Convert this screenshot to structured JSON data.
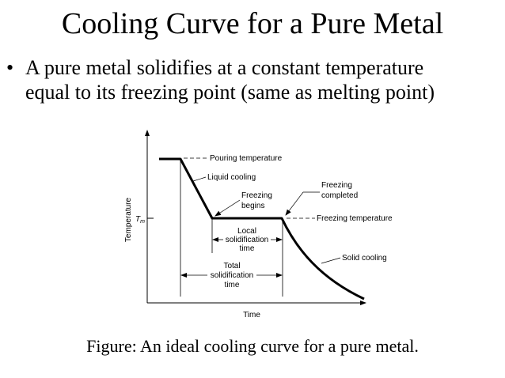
{
  "title": "Cooling Curve for a Pure Metal",
  "bullet": {
    "marker": "•",
    "line1": "A pure metal solidifies at a constant temperature",
    "line2": "equal to its freezing point (same as melting point)"
  },
  "diagram": {
    "y_axis_label": "Temperature",
    "x_axis_label": "Time",
    "tm_symbol": "T",
    "tm_subscript": "m",
    "labels": {
      "pouring_temperature": "Pouring temperature",
      "liquid_cooling": "Liquid cooling",
      "freezing_begins_1": "Freezing",
      "freezing_begins_2": "begins",
      "freezing_completed_1": "Freezing",
      "freezing_completed_2": "completed",
      "freezing_temperature": "Freezing temperature",
      "local_1": "Local",
      "local_2": "solidification",
      "local_3": "time",
      "total_1": "Total",
      "total_2": "solidification",
      "total_3": "time",
      "solid_cooling": "Solid cooling"
    }
  },
  "caption": "Figure:  An ideal cooling curve for a pure metal."
}
